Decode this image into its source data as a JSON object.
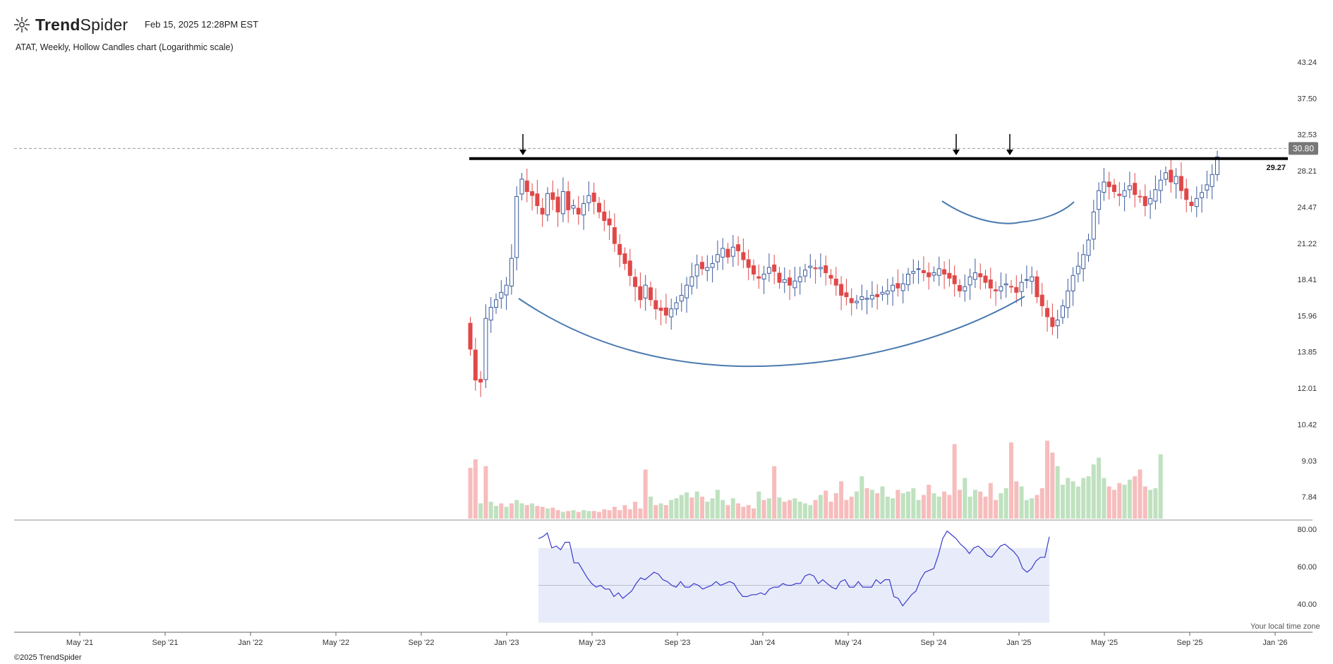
{
  "header": {
    "brand_bold": "Trend",
    "brand_light": "Spider",
    "timestamp": "Feb 15, 2025 12:28PM EST",
    "chart_title": "ATAT, Weekly, Hollow Candles chart (Logarithmic scale)"
  },
  "footer": {
    "copyright": "©2025 TrendSpider",
    "timezone_note": "Your local time zone"
  },
  "colors": {
    "up": "#3a5a9c",
    "down": "#e04848",
    "volume_up": "#bfe1bf",
    "volume_down": "#f7bcbc",
    "curve": "#4a7ab0",
    "rsi_line": "#3a3acc",
    "rsi_band": "#e8ecfa"
  },
  "chart_data": [
    {
      "type": "candlestick",
      "scale": "log",
      "y_ticks": [
        "43.24",
        "37.50",
        "32.53",
        "28.21",
        "24.47",
        "21.22",
        "18.41",
        "15.96",
        "13.85",
        "12.01",
        "10.42",
        "9.03",
        "7.84"
      ],
      "x_ticks": [
        "May '21",
        "Sep '21",
        "Jan '22",
        "May '22",
        "Sep '22",
        "Jan '23",
        "May '23",
        "Sep '23",
        "Jan '24",
        "May '24",
        "Sep '24",
        "Jan '25",
        "May '25",
        "Sep '25",
        "Jan '26"
      ],
      "last_price": "30.80",
      "resistance_level": "29.27",
      "annotations": [
        "down-arrow",
        "down-arrow",
        "down-arrow"
      ],
      "closes": [
        14.0,
        12.4,
        12.3,
        15.8,
        16.5,
        17.0,
        17.5,
        18.0,
        20.0,
        25.5,
        27.3,
        26.0,
        25.6,
        24.6,
        23.8,
        25.8,
        25.2,
        24.0,
        26.0,
        24.2,
        24.6,
        23.8,
        24.8,
        25.6,
        25.0,
        24.0,
        23.2,
        22.8,
        21.2,
        20.3,
        19.6,
        18.7,
        17.9,
        17.0,
        18.0,
        17.0,
        16.4,
        16.3,
        16.0,
        16.4,
        16.8,
        17.3,
        18.0,
        18.6,
        19.5,
        19.2,
        19.3,
        19.6,
        20.3,
        20.8,
        20.1,
        20.9,
        20.6,
        19.9,
        19.3,
        18.8,
        18.5,
        18.8,
        19.3,
        19.0,
        18.2,
        18.4,
        18.0,
        18.3,
        18.6,
        19.1,
        19.4,
        19.2,
        19.3,
        18.9,
        18.5,
        18.0,
        17.3,
        17.2,
        16.8,
        16.9,
        17.2,
        17.1,
        17.3,
        17.2,
        17.5,
        17.6,
        18.0,
        17.8,
        18.1,
        18.8,
        19.0,
        19.2,
        18.9,
        18.6,
        18.9,
        19.2,
        18.8,
        18.5,
        18.1,
        17.6,
        17.9,
        18.6,
        18.9,
        18.6,
        18.2,
        17.8,
        17.6,
        17.9,
        18.1,
        17.9,
        17.5,
        18.2,
        18.4,
        18.6,
        17.2,
        16.6,
        15.9,
        15.3,
        15.7,
        16.6,
        17.6,
        18.7,
        19.4,
        20.3,
        21.5,
        24.0,
        26.1,
        27.0,
        26.5,
        26.0,
        25.6,
        26.1,
        26.6,
        25.7,
        25.5,
        24.6,
        25.3,
        26.2,
        27.2,
        28.0,
        27.0,
        27.6,
        26.1,
        25.2,
        24.6,
        25.3,
        25.9,
        26.7,
        27.8,
        29.8
      ]
    },
    {
      "type": "bar",
      "name": "volume",
      "values": [
        60,
        70,
        18,
        62,
        20,
        15,
        18,
        14,
        18,
        22,
        18,
        16,
        18,
        15,
        14,
        12,
        13,
        10,
        8,
        9,
        10,
        8,
        10,
        9,
        9,
        8,
        11,
        10,
        14,
        10,
        16,
        11,
        20,
        12,
        58,
        26,
        16,
        18,
        16,
        22,
        24,
        28,
        31,
        25,
        32,
        26,
        20,
        24,
        34,
        22,
        16,
        24,
        18,
        14,
        16,
        12,
        32,
        22,
        24,
        62,
        25,
        20,
        22,
        24,
        20,
        18,
        16,
        22,
        28,
        33,
        20,
        30,
        44,
        22,
        26,
        32,
        50,
        36,
        34,
        30,
        38,
        26,
        24,
        34,
        30,
        32,
        36,
        22,
        28,
        40,
        30,
        26,
        32,
        28,
        88,
        34,
        48,
        26,
        34,
        32,
        26,
        42,
        22,
        30,
        36,
        90,
        44,
        38,
        22,
        24,
        28,
        36,
        92,
        78,
        62,
        40,
        48,
        44,
        38,
        48,
        50,
        64,
        72,
        48,
        38,
        34,
        42,
        40,
        46,
        50,
        58,
        38,
        34,
        36,
        76
      ],
      "up": [
        false,
        false,
        true,
        false,
        true,
        true,
        false,
        true,
        false,
        true,
        true,
        false,
        true,
        false,
        false,
        true,
        false,
        false,
        true,
        false,
        true,
        false,
        true,
        true,
        false,
        false,
        false,
        false,
        false,
        false,
        false,
        false,
        false,
        false,
        false,
        true,
        false,
        true,
        false,
        true,
        true,
        true,
        true,
        false,
        true,
        false,
        true,
        true,
        true,
        true,
        false,
        true,
        false,
        false,
        false,
        false,
        true,
        false,
        true,
        false,
        true,
        false,
        false,
        true,
        true,
        true,
        true,
        false,
        true,
        false,
        false,
        false,
        false,
        false,
        false,
        true,
        true,
        false,
        true,
        false,
        true,
        true,
        true,
        false,
        true,
        true,
        true,
        true,
        false,
        false,
        true,
        true,
        false,
        false,
        false,
        false,
        true,
        true,
        true,
        false,
        false,
        false,
        false,
        true,
        true,
        false,
        false,
        true,
        true,
        true,
        false,
        false,
        false,
        false,
        true,
        true,
        true,
        true,
        true,
        true,
        true,
        true,
        true,
        true,
        false,
        false,
        false,
        true,
        true,
        false,
        false,
        false,
        true,
        true,
        true,
        true
      ],
      "values_note": "volume"
    },
    {
      "type": "line",
      "name": "RSI",
      "y_ticks": [
        "80.00",
        "60.00",
        "40.00"
      ],
      "band": [
        30,
        70
      ],
      "values": [
        75,
        76,
        78,
        70,
        71,
        69,
        73,
        73,
        62,
        62,
        58,
        54,
        51,
        49,
        50,
        48,
        48,
        44,
        46,
        43,
        45,
        47,
        51,
        54,
        53,
        55,
        57,
        56,
        53,
        52,
        50,
        49,
        52,
        49,
        49,
        51,
        50,
        48,
        49,
        50,
        52,
        50,
        51,
        52,
        51,
        47,
        44,
        44,
        45,
        45,
        46,
        45,
        48,
        49,
        49,
        51,
        50,
        50,
        51,
        51,
        55,
        56,
        55,
        51,
        53,
        51,
        49,
        48,
        52,
        53,
        49,
        49,
        52,
        49,
        49,
        49,
        53,
        51,
        53,
        53,
        44,
        43,
        39,
        42,
        45,
        47,
        53,
        57,
        58,
        59,
        66,
        75,
        79,
        77,
        75,
        72,
        70,
        67,
        70,
        71,
        69,
        66,
        65,
        68,
        71,
        72,
        70,
        68,
        65,
        59,
        57,
        59,
        63,
        65,
        65,
        76
      ]
    }
  ]
}
